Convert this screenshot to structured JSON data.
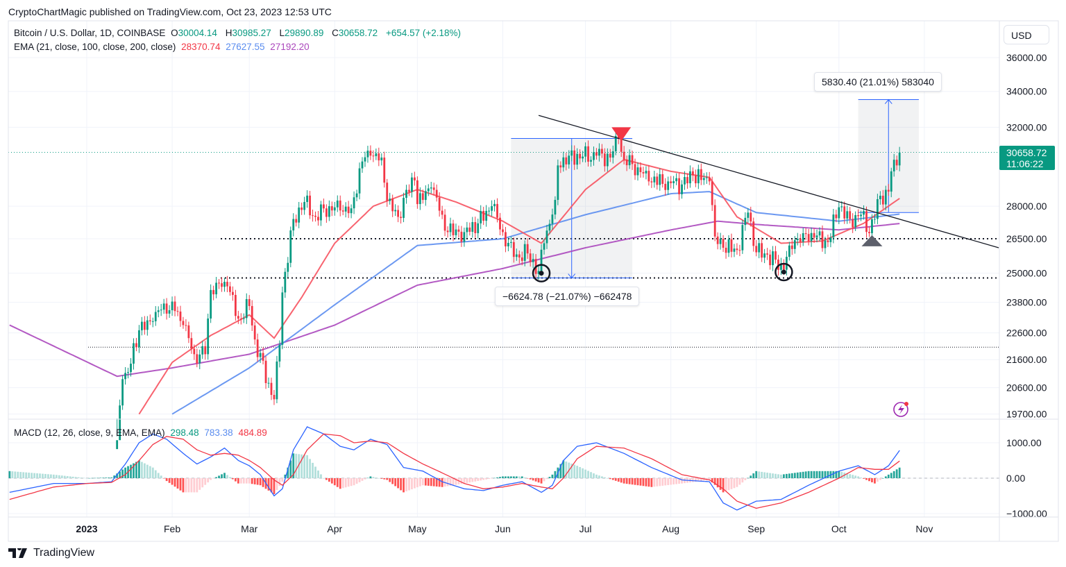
{
  "header": {
    "published": "CryptoChartMagic published on TradingView.com, Oct 23, 2023 12:53 UTC"
  },
  "legend": {
    "symbol": "Bitcoin / U.S. Dollar, 1D, COINBASE",
    "o_label": "O",
    "open": "30004.14",
    "h_label": "H",
    "high": "30985.27",
    "l_label": "L",
    "low": "29890.89",
    "c_label": "C",
    "close": "30658.72",
    "change": "+654.57 (+2.18%)",
    "ema_label": "EMA (21, close, 100, close, 200, close)",
    "ema21": "28370.74",
    "ema100": "27627.55",
    "ema200": "27192.20",
    "macd_label": "MACD (12, 26, close, 9, EMA, EMA)",
    "macd_hist": "298.48",
    "macd": "783.38",
    "macd_signal": "484.89"
  },
  "price_axis": {
    "currency": "USD",
    "last_price": "30658.72",
    "countdown": "11:06:22"
  },
  "measure_labels": {
    "drop": "−6624.78 (−21.07%) −662478",
    "rise": "5830.40 (21.01%) 583040"
  },
  "brand": {
    "name": "TradingView"
  },
  "colors": {
    "up": "#089981",
    "down": "#f23645",
    "ema21": "#f7525f",
    "ema100": "#5b8def",
    "ema200": "#ab47bc",
    "macd": "#2962ff",
    "signal": "#f23645"
  },
  "chart_data": [
    {
      "type": "candlestick",
      "scale": "log",
      "ylim": [
        19700,
        36000
      ],
      "grid": true,
      "y_ticks": [
        "36000.00",
        "34000.00",
        "32000.00",
        "28000.00",
        "26500.00",
        "25000.00",
        "23800.00",
        "22600.00",
        "21600.00",
        "20600.00",
        "19700.00"
      ],
      "x_ticks": [
        {
          "date": "2023-01-01",
          "label": "2023"
        },
        {
          "date": "2023-02-01",
          "label": "Feb"
        },
        {
          "date": "2023-03-01",
          "label": "Mar"
        },
        {
          "date": "2023-04-01",
          "label": "Apr"
        },
        {
          "date": "2023-05-01",
          "label": "May"
        },
        {
          "date": "2023-06-01",
          "label": "Jun"
        },
        {
          "date": "2023-07-01",
          "label": "Jul"
        },
        {
          "date": "2023-08-01",
          "label": "Aug"
        },
        {
          "date": "2023-09-01",
          "label": "Sep"
        },
        {
          "date": "2023-10-01",
          "label": "Oct"
        },
        {
          "date": "2023-11-01",
          "label": "Nov"
        }
      ],
      "close": [
        [
          "2023-01-12",
          18850
        ],
        [
          "2023-01-14",
          20900
        ],
        [
          "2023-01-16",
          21150
        ],
        [
          "2023-01-20",
          22700
        ],
        [
          "2023-01-25",
          23050
        ],
        [
          "2023-01-29",
          23750
        ],
        [
          "2023-02-02",
          23450
        ],
        [
          "2023-02-05",
          22900
        ],
        [
          "2023-02-09",
          21800
        ],
        [
          "2023-02-13",
          21800
        ],
        [
          "2023-02-15",
          24300
        ],
        [
          "2023-02-17",
          24600
        ],
        [
          "2023-02-21",
          24450
        ],
        [
          "2023-02-25",
          23150
        ],
        [
          "2023-03-01",
          23650
        ],
        [
          "2023-03-03",
          22350
        ],
        [
          "2023-03-09",
          20350
        ],
        [
          "2023-03-10",
          20200
        ],
        [
          "2023-03-12",
          22150
        ],
        [
          "2023-03-13",
          24200
        ],
        [
          "2023-03-17",
          27400
        ],
        [
          "2023-03-21",
          28200
        ],
        [
          "2023-03-25",
          27500
        ],
        [
          "2023-03-30",
          28000
        ],
        [
          "2023-04-03",
          27800
        ],
        [
          "2023-04-07",
          27900
        ],
        [
          "2023-04-11",
          30200
        ],
        [
          "2023-04-14",
          30500
        ],
        [
          "2023-04-18",
          30400
        ],
        [
          "2023-04-20",
          28250
        ],
        [
          "2023-04-24",
          27500
        ],
        [
          "2023-04-26",
          28400
        ],
        [
          "2023-04-30",
          29250
        ],
        [
          "2023-05-01",
          28100
        ],
        [
          "2023-05-06",
          28900
        ],
        [
          "2023-05-10",
          27600
        ],
        [
          "2023-05-12",
          26800
        ],
        [
          "2023-05-18",
          26800
        ],
        [
          "2023-05-23",
          27200
        ],
        [
          "2023-05-28",
          28000
        ],
        [
          "2023-06-01",
          26800
        ],
        [
          "2023-06-05",
          25700
        ],
        [
          "2023-06-10",
          25850
        ],
        [
          "2023-06-14",
          25100
        ],
        [
          "2023-06-16",
          26300
        ],
        [
          "2023-06-20",
          28300
        ],
        [
          "2023-06-21",
          30000
        ],
        [
          "2023-06-25",
          30500
        ],
        [
          "2023-06-30",
          30450
        ],
        [
          "2023-07-05",
          30500
        ],
        [
          "2023-07-10",
          30400
        ],
        [
          "2023-07-13",
          31400
        ],
        [
          "2023-07-15",
          30300
        ],
        [
          "2023-07-20",
          29900
        ],
        [
          "2023-07-24",
          29200
        ],
        [
          "2023-07-31",
          29200
        ],
        [
          "2023-08-05",
          29050
        ],
        [
          "2023-08-09",
          29500
        ],
        [
          "2023-08-15",
          29200
        ],
        [
          "2023-08-17",
          26600
        ],
        [
          "2023-08-20",
          26100
        ],
        [
          "2023-08-25",
          26000
        ],
        [
          "2023-08-29",
          27700
        ],
        [
          "2023-09-01",
          25900
        ],
        [
          "2023-09-05",
          25800
        ],
        [
          "2023-09-11",
          25150
        ],
        [
          "2023-09-13",
          26200
        ],
        [
          "2023-09-18",
          26750
        ],
        [
          "2023-09-22",
          26550
        ],
        [
          "2023-09-27",
          26350
        ],
        [
          "2023-10-01",
          27950
        ],
        [
          "2023-10-05",
          27400
        ],
        [
          "2023-10-09",
          27600
        ],
        [
          "2023-10-12",
          26750
        ],
        [
          "2023-10-16",
          28500
        ],
        [
          "2023-10-19",
          28700
        ],
        [
          "2023-10-20",
          29700
        ],
        [
          "2023-10-22",
          30000
        ],
        [
          "2023-10-23",
          30658.72
        ]
      ],
      "ema21": [
        [
          "2023-01-20",
          19700
        ],
        [
          "2023-02-01",
          21500
        ],
        [
          "2023-02-15",
          22500
        ],
        [
          "2023-03-01",
          23300
        ],
        [
          "2023-03-10",
          22400
        ],
        [
          "2023-03-20",
          24000
        ],
        [
          "2023-04-01",
          26300
        ],
        [
          "2023-04-15",
          28000
        ],
        [
          "2023-05-01",
          28800
        ],
        [
          "2023-05-15",
          28200
        ],
        [
          "2023-06-01",
          27300
        ],
        [
          "2023-06-15",
          26300
        ],
        [
          "2023-07-01",
          28800
        ],
        [
          "2023-07-15",
          30300
        ],
        [
          "2023-08-01",
          29700
        ],
        [
          "2023-08-15",
          29400
        ],
        [
          "2023-08-25",
          27500
        ],
        [
          "2023-09-10",
          26300
        ],
        [
          "2023-09-25",
          26400
        ],
        [
          "2023-10-10",
          27200
        ],
        [
          "2023-10-23",
          28370.74
        ]
      ],
      "ema100": [
        [
          "2023-02-01",
          19700
        ],
        [
          "2023-03-01",
          21300
        ],
        [
          "2023-04-01",
          23700
        ],
        [
          "2023-05-01",
          26200
        ],
        [
          "2023-06-01",
          26500
        ],
        [
          "2023-07-01",
          27600
        ],
        [
          "2023-08-01",
          28600
        ],
        [
          "2023-08-15",
          28700
        ],
        [
          "2023-09-01",
          27700
        ],
        [
          "2023-10-01",
          27300
        ],
        [
          "2023-10-23",
          27627.55
        ]
      ],
      "ema200": [
        [
          "2022-12-04",
          22900
        ],
        [
          "2023-01-12",
          21000
        ],
        [
          "2023-02-01",
          21300
        ],
        [
          "2023-03-01",
          21800
        ],
        [
          "2023-04-01",
          22900
        ],
        [
          "2023-05-01",
          24500
        ],
        [
          "2023-06-01",
          25200
        ],
        [
          "2023-07-01",
          26100
        ],
        [
          "2023-08-01",
          26900
        ],
        [
          "2023-08-18",
          27300
        ],
        [
          "2023-09-01",
          27150
        ],
        [
          "2023-10-01",
          26900
        ],
        [
          "2023-10-23",
          27192.2
        ]
      ],
      "annotations": {
        "trendline": [
          [
            "2023-06-14",
            32650
          ],
          [
            "2023-11-28",
            26100
          ]
        ],
        "horizontal_levels": [
          26500,
          24800,
          22060
        ],
        "measure_drop": {
          "from": [
            "2023-06-04",
            31400
          ],
          "to": [
            "2023-07-18",
            24800
          ]
        },
        "measure_rise": {
          "from": [
            "2023-10-08",
            27700
          ],
          "to": [
            "2023-10-30",
            33530
          ]
        },
        "circle_markers": [
          [
            "2023-06-15",
            25000
          ],
          [
            "2023-09-11",
            25050
          ]
        ],
        "arrow_down": [
          "2023-07-14",
          31700
        ],
        "arrow_up": [
          "2023-10-13",
          26350
        ]
      }
    },
    {
      "type": "macd",
      "ylim": [
        -1000,
        1000
      ],
      "y_ticks": [
        "1000.00",
        "0.00",
        "−1000.00"
      ],
      "macd_signal": [
        [
          "2022-12-04",
          -400,
          -600
        ],
        [
          "2022-12-20",
          -150,
          -250
        ],
        [
          "2023-01-01",
          -150,
          -150
        ],
        [
          "2023-01-10",
          -100,
          -120
        ],
        [
          "2023-01-15",
          400,
          100
        ],
        [
          "2023-01-20",
          1000,
          500
        ],
        [
          "2023-01-25",
          1250,
          950
        ],
        [
          "2023-01-30",
          1100,
          1180
        ],
        [
          "2023-02-05",
          700,
          1100
        ],
        [
          "2023-02-10",
          400,
          800
        ],
        [
          "2023-02-15",
          600,
          650
        ],
        [
          "2023-02-20",
          850,
          700
        ],
        [
          "2023-02-25",
          500,
          650
        ],
        [
          "2023-03-01",
          350,
          500
        ],
        [
          "2023-03-05",
          100,
          300
        ],
        [
          "2023-03-10",
          -500,
          -50
        ],
        [
          "2023-03-13",
          -300,
          -200
        ],
        [
          "2023-03-17",
          800,
          100
        ],
        [
          "2023-03-22",
          1450,
          800
        ],
        [
          "2023-03-28",
          1250,
          1250
        ],
        [
          "2023-04-03",
          900,
          1200
        ],
        [
          "2023-04-08",
          800,
          1000
        ],
        [
          "2023-04-14",
          1100,
          1050
        ],
        [
          "2023-04-20",
          950,
          1000
        ],
        [
          "2023-04-26",
          300,
          700
        ],
        [
          "2023-05-03",
          200,
          400
        ],
        [
          "2023-05-10",
          -100,
          150
        ],
        [
          "2023-05-18",
          -300,
          -150
        ],
        [
          "2023-05-25",
          -350,
          -300
        ],
        [
          "2023-06-01",
          -200,
          -250
        ],
        [
          "2023-06-08",
          -100,
          -150
        ],
        [
          "2023-06-15",
          -400,
          -250
        ],
        [
          "2023-06-19",
          -200,
          -300
        ],
        [
          "2023-06-23",
          500,
          0
        ],
        [
          "2023-06-28",
          900,
          550
        ],
        [
          "2023-07-05",
          1000,
          900
        ],
        [
          "2023-07-15",
          700,
          850
        ],
        [
          "2023-07-25",
          300,
          550
        ],
        [
          "2023-08-05",
          -50,
          100
        ],
        [
          "2023-08-15",
          -100,
          -50
        ],
        [
          "2023-08-20",
          -700,
          -300
        ],
        [
          "2023-08-25",
          -900,
          -650
        ],
        [
          "2023-09-01",
          -650,
          -850
        ],
        [
          "2023-09-10",
          -600,
          -700
        ],
        [
          "2023-09-20",
          -200,
          -400
        ],
        [
          "2023-10-01",
          200,
          0
        ],
        [
          "2023-10-08",
          350,
          300
        ],
        [
          "2023-10-14",
          100,
          250
        ],
        [
          "2023-10-19",
          350,
          250
        ],
        [
          "2023-10-23",
          783.38,
          484.89
        ]
      ]
    }
  ]
}
